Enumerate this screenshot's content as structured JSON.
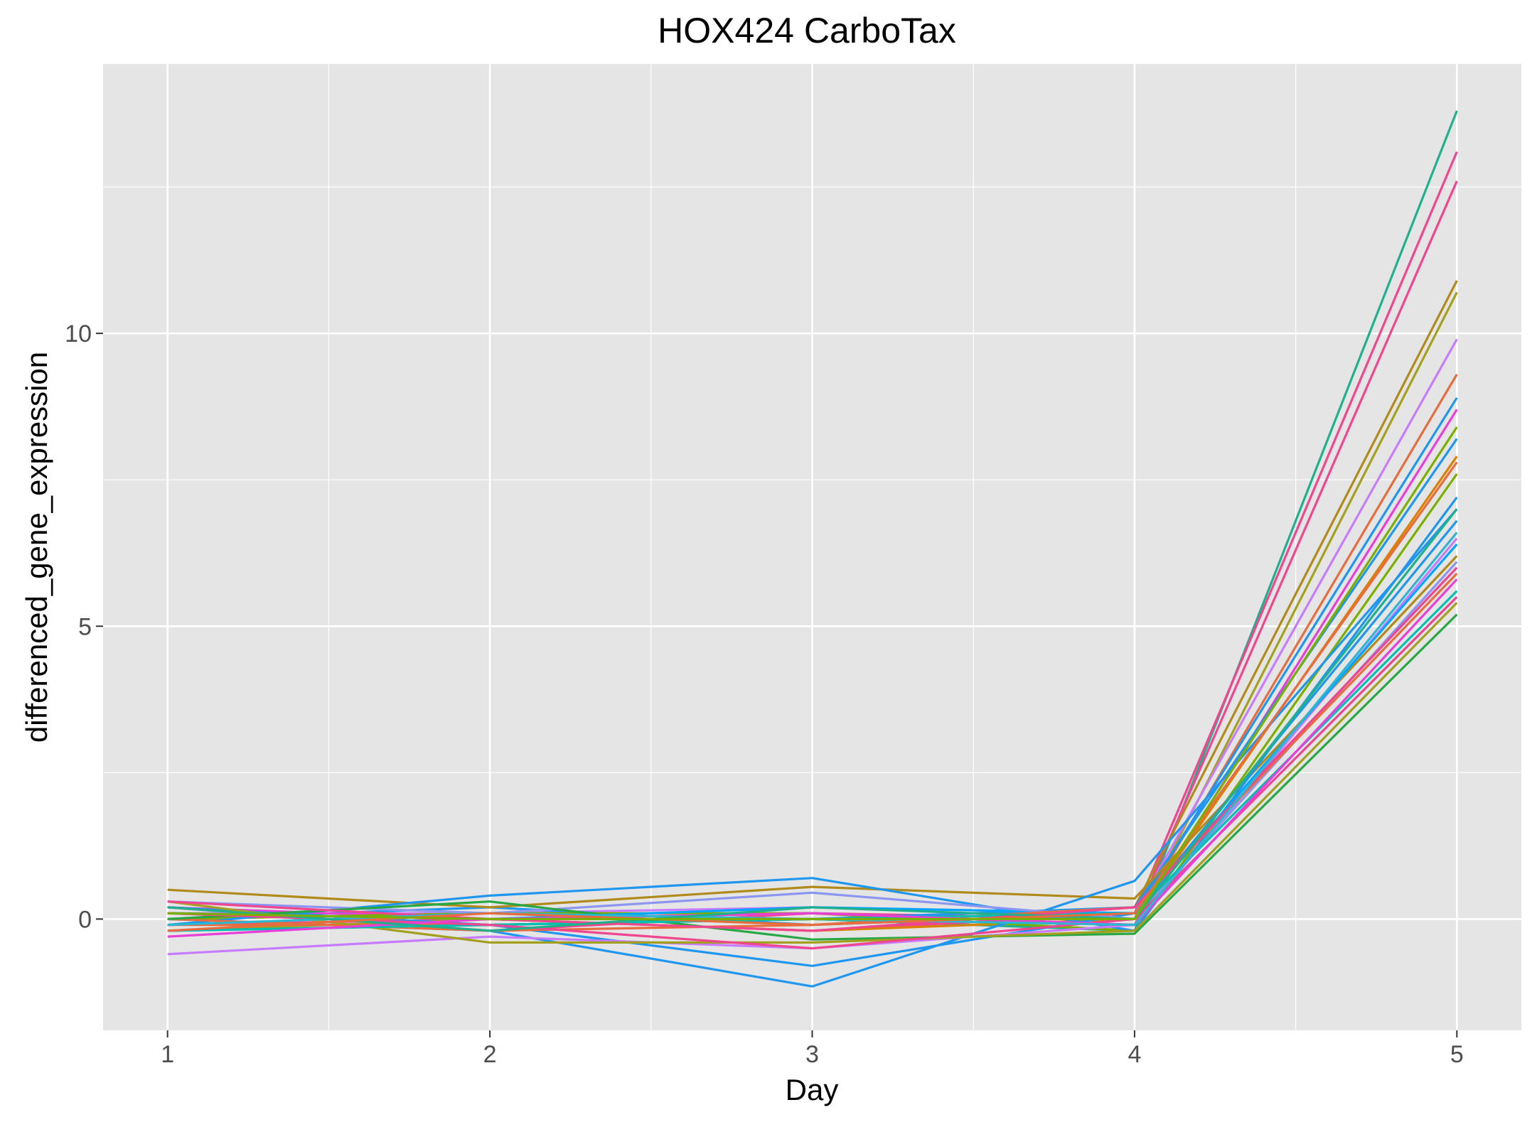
{
  "chart_data": {
    "type": "line",
    "title": "HOX424 CarboTax",
    "xlabel": "Day",
    "ylabel": "differenced_gene_expression",
    "x": [
      1,
      2,
      3,
      4,
      5
    ],
    "x_ticks": [
      "1",
      "2",
      "3",
      "4",
      "5"
    ],
    "y_ticks": [
      "0",
      "5",
      "10"
    ],
    "xlim": [
      0.8,
      5.2
    ],
    "ylim": [
      -1.9,
      14.6
    ],
    "grid": true,
    "legend": "none",
    "series": [
      {
        "color": "#21B08C",
        "values": [
          0.1,
          -0.1,
          0.0,
          -0.2,
          13.8
        ]
      },
      {
        "color": "#F0458F",
        "values": [
          -0.1,
          0.0,
          -0.2,
          0.1,
          13.1
        ]
      },
      {
        "color": "#F0458F",
        "values": [
          0.2,
          -0.2,
          0.1,
          0.0,
          12.6
        ]
      },
      {
        "color": "#B08A1A",
        "values": [
          0.0,
          0.1,
          -0.1,
          0.2,
          10.9
        ]
      },
      {
        "color": "#A3A020",
        "values": [
          -0.2,
          0.0,
          0.1,
          -0.1,
          10.7
        ]
      },
      {
        "color": "#C77CFF",
        "values": [
          0.1,
          0.1,
          0.2,
          0.1,
          9.9
        ]
      },
      {
        "color": "#E76C3E",
        "values": [
          -0.1,
          -0.1,
          0.0,
          0.0,
          9.3
        ]
      },
      {
        "color": "#1F96F0",
        "values": [
          0.0,
          0.2,
          -0.1,
          0.1,
          8.9
        ]
      },
      {
        "color": "#E83FD9",
        "values": [
          0.2,
          0.0,
          0.1,
          -0.1,
          8.7
        ]
      },
      {
        "color": "#1F96F0",
        "values": [
          -0.2,
          -0.1,
          0.0,
          0.2,
          8.2
        ]
      },
      {
        "color": "#D98200",
        "values": [
          0.1,
          0.0,
          -0.2,
          0.0,
          7.9
        ]
      },
      {
        "color": "#7CAE00",
        "values": [
          0.0,
          0.1,
          0.1,
          -0.2,
          7.6
        ]
      },
      {
        "color": "#B08A1A",
        "values": [
          0.5,
          0.2,
          0.55,
          0.35,
          6.2
        ]
      },
      {
        "color": "#1F96F0",
        "values": [
          -0.1,
          0.4,
          0.7,
          -0.2,
          7.2
        ]
      },
      {
        "color": "#1F96F0",
        "values": [
          0.0,
          -0.2,
          -1.15,
          0.65,
          7.0
        ]
      },
      {
        "color": "#1F96F0",
        "values": [
          0.2,
          -0.1,
          -0.8,
          0.1,
          6.8
        ]
      },
      {
        "color": "#C77CFF",
        "values": [
          -0.6,
          -0.3,
          -0.5,
          -0.1,
          6.5
        ]
      },
      {
        "color": "#00A6FF",
        "values": [
          0.1,
          0.0,
          0.2,
          0.1,
          6.4
        ]
      },
      {
        "color": "#8C96F0",
        "values": [
          0.3,
          0.1,
          0.45,
          0.0,
          6.1
        ]
      },
      {
        "color": "#E76C3E",
        "values": [
          0.0,
          -0.2,
          -0.1,
          0.2,
          5.9
        ]
      },
      {
        "color": "#28A745",
        "values": [
          0.0,
          0.3,
          -0.35,
          -0.25,
          5.2
        ]
      },
      {
        "color": "#A3A020",
        "values": [
          0.3,
          -0.4,
          -0.4,
          -0.2,
          5.4
        ]
      },
      {
        "color": "#00C0B0",
        "values": [
          -0.2,
          -0.1,
          0.0,
          0.1,
          5.6
        ]
      },
      {
        "color": "#F0458F",
        "values": [
          0.1,
          -0.1,
          -0.5,
          0.0,
          5.5
        ]
      },
      {
        "color": "#E83FD9",
        "values": [
          -0.3,
          0.0,
          0.1,
          -0.1,
          5.8
        ]
      },
      {
        "color": "#F0458F",
        "values": [
          0.3,
          0.0,
          -0.2,
          0.2,
          6.0
        ]
      },
      {
        "color": "#2DB6D0",
        "values": [
          -0.1,
          0.1,
          0.0,
          -0.1,
          6.6
        ]
      },
      {
        "color": "#21B08C",
        "values": [
          0.2,
          -0.2,
          0.2,
          0.0,
          7.0
        ]
      },
      {
        "color": "#E76C3E",
        "values": [
          -0.2,
          0.1,
          -0.1,
          0.1,
          7.8
        ]
      },
      {
        "color": "#7CAE00",
        "values": [
          0.1,
          0.0,
          0.0,
          0.0,
          8.4
        ]
      }
    ]
  }
}
